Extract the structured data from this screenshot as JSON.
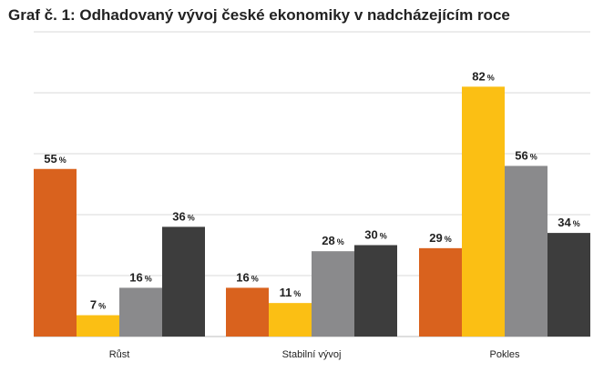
{
  "title": "Graf č. 1: Odhadovaný vývoj české ekonomiky v nadcházejícím roce",
  "chart_data": {
    "type": "bar",
    "title": "Graf č. 1: Odhadovaný vývoj české ekonomiky v nadcházejícím roce",
    "categories": [
      "Růst",
      "Stabilní vývoj",
      "Pokles"
    ],
    "series": [
      {
        "values": [
          55,
          16,
          29
        ],
        "color": "#d9621e"
      },
      {
        "values": [
          7,
          11,
          82
        ],
        "color": "#fbbf14"
      },
      {
        "values": [
          16,
          28,
          56
        ],
        "color": "#8a8a8c"
      },
      {
        "values": [
          36,
          30,
          34
        ],
        "color": "#3d3d3d"
      }
    ],
    "unit": "%",
    "ylim": [
      0,
      100
    ],
    "grid": true,
    "xlabel": "",
    "ylabel": ""
  }
}
